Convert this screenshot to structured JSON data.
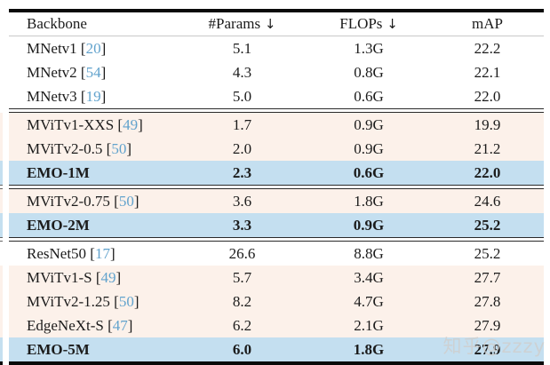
{
  "table": {
    "header": {
      "columns": [
        {
          "label": "Backbone",
          "arrow": ""
        },
        {
          "label": "#Params",
          "arrow": "↓"
        },
        {
          "label": "FLOPs",
          "arrow": "↓"
        },
        {
          "label": "mAP",
          "arrow": ""
        }
      ]
    },
    "symbols": {
      "cite_open": "[",
      "cite_close": "]"
    },
    "groups": [
      {
        "rows": [
          {
            "backbone": "MNetv1",
            "cite": "20",
            "params": "5.1",
            "flops": "1.3G",
            "map": "22.2",
            "style": "plain"
          },
          {
            "backbone": "MNetv2",
            "cite": "54",
            "params": "4.3",
            "flops": "0.8G",
            "map": "22.1",
            "style": "plain"
          },
          {
            "backbone": "MNetv3",
            "cite": "19",
            "params": "5.0",
            "flops": "0.6G",
            "map": "22.0",
            "style": "plain"
          }
        ]
      },
      {
        "rows": [
          {
            "backbone": "MViTv1-XXS",
            "cite": "49",
            "params": "1.7",
            "flops": "0.9G",
            "map": "19.9",
            "style": "tinted"
          },
          {
            "backbone": "MViTv2-0.5",
            "cite": "50",
            "params": "2.0",
            "flops": "0.9G",
            "map": "21.2",
            "style": "tinted"
          },
          {
            "backbone": "EMO-1M",
            "cite": null,
            "params": "2.3",
            "flops": "0.6G",
            "map": "22.0",
            "style": "highlight"
          }
        ]
      },
      {
        "rows": [
          {
            "backbone": "MViTv2-0.75",
            "cite": "50",
            "params": "3.6",
            "flops": "1.8G",
            "map": "24.6",
            "style": "tinted"
          },
          {
            "backbone": "EMO-2M",
            "cite": null,
            "params": "3.3",
            "flops": "0.9G",
            "map": "25.2",
            "style": "highlight"
          }
        ]
      },
      {
        "rows": [
          {
            "backbone": "ResNet50",
            "cite": "17",
            "params": "26.6",
            "flops": "8.8G",
            "map": "25.2",
            "style": "plain"
          },
          {
            "backbone": "MViTv1-S",
            "cite": "49",
            "params": "5.7",
            "flops": "3.4G",
            "map": "27.7",
            "style": "tinted"
          },
          {
            "backbone": "MViTv2-1.25",
            "cite": "50",
            "params": "8.2",
            "flops": "4.7G",
            "map": "27.8",
            "style": "tinted"
          },
          {
            "backbone": "EdgeNeXt-S",
            "cite": "47",
            "params": "6.2",
            "flops": "2.1G",
            "map": "27.9",
            "style": "tinted"
          },
          {
            "backbone": "EMO-5M",
            "cite": null,
            "params": "6.0",
            "flops": "1.8G",
            "map": "27.9",
            "style": "highlight"
          }
        ]
      }
    ]
  },
  "watermark": {
    "text": "知乎@zzzy"
  },
  "colors": {
    "row_tint": "#fcf1ea",
    "row_highlight": "#c4dff0",
    "citation_blue": "#62a3cd",
    "rule_black": "#0a0a0a"
  }
}
